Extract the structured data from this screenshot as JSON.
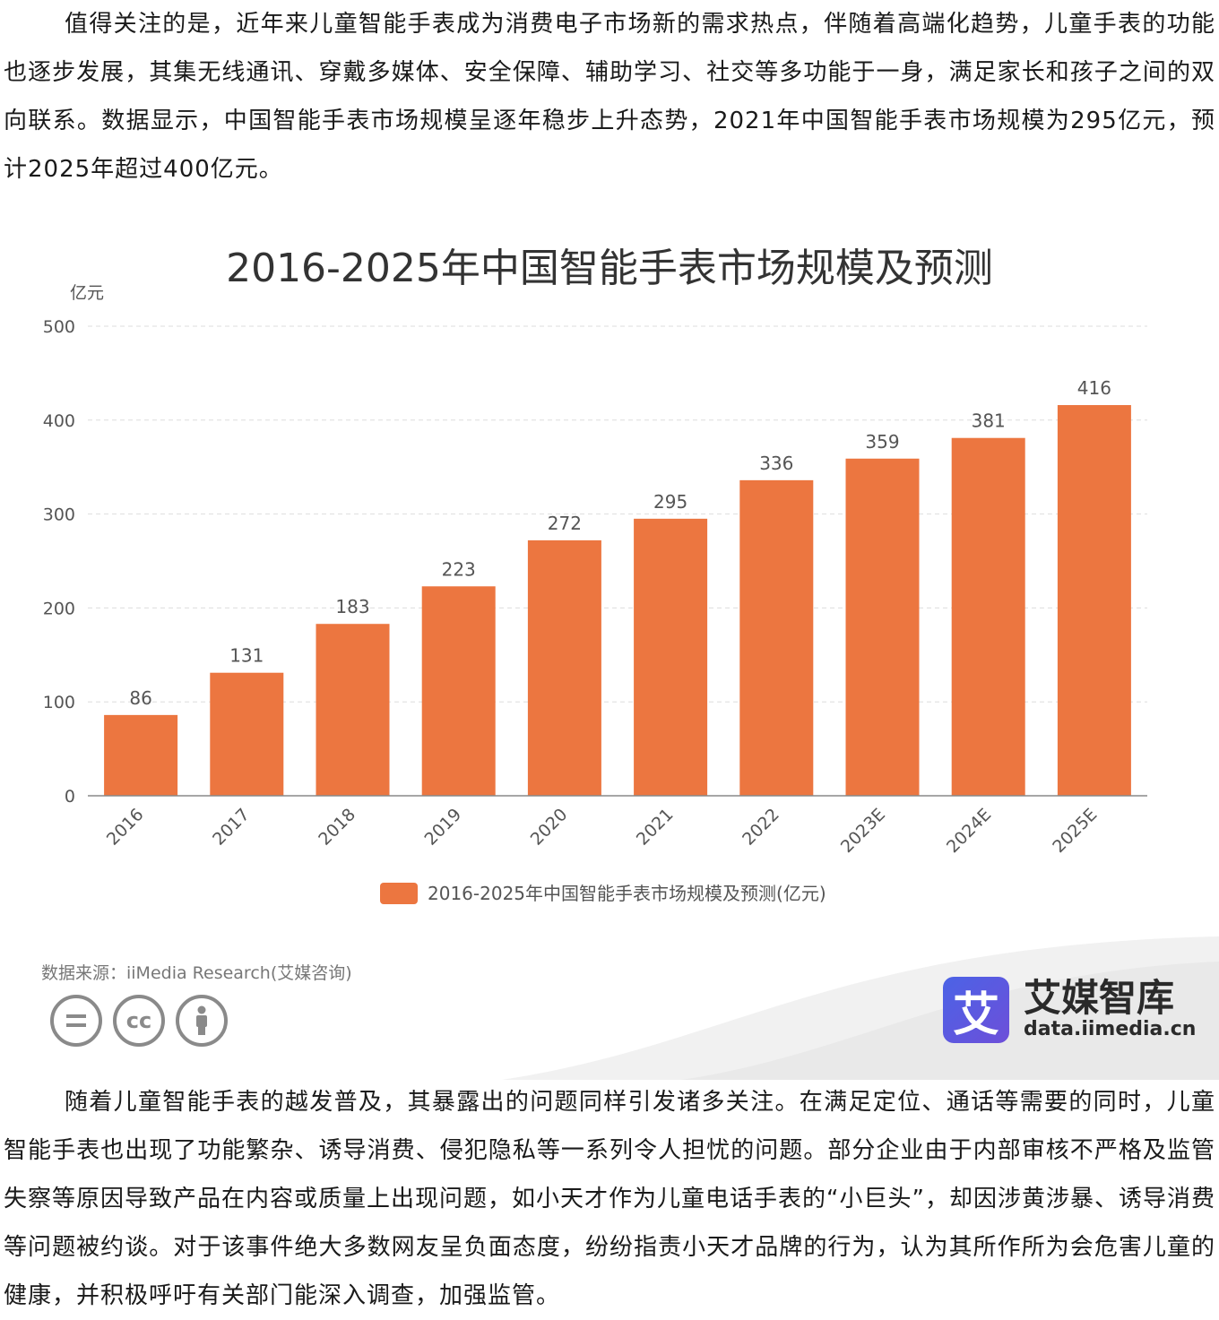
{
  "article": {
    "para1": "值得关注的是，近年来儿童智能手表成为消费电子市场新的需求热点，伴随着高端化趋势，儿童手表的功能也逐步发展，其集无线通讯、穿戴多媒体、安全保障、辅助学习、社交等多功能于一身，满足家长和孩子之间的双向联系。数据显示，中国智能手表市场规模呈逐年稳步上升态势，2021年中国智能手表市场规模为295亿元，预计2025年超过400亿元。",
    "para2": "随着儿童智能手表的越发普及，其暴露出的问题同样引发诸多关注。在满足定位、通话等需要的同时，儿童智能手表也出现了功能繁杂、诱导消费、侵犯隐私等一系列令人担忧的问题。部分企业由于内部审核不严格及监管失察等原因导致产品在内容或质量上出现问题，如小天才作为儿童电话手表的“小巨头”，却因涉黄涉暴、诱导消费等问题被约谈。对于该事件绝大多数网友呈负面态度，纷纷指责小天才品牌的行为，认为其所作所为会危害儿童的健康，并积极呼吁有关部门能深入调查，加强监管。"
  },
  "chart_data": {
    "type": "bar",
    "title": "2016-2025年中国智能手表市场规模及预测",
    "ylabel": "亿元",
    "xlabel": "",
    "categories": [
      "2016",
      "2017",
      "2018",
      "2019",
      "2020",
      "2021",
      "2022",
      "2023E",
      "2024E",
      "2025E"
    ],
    "series": [
      {
        "name": "2016-2025年中国智能手表市场规模及预测(亿元)",
        "values": [
          86,
          131,
          183,
          223,
          272,
          295,
          336,
          359,
          381,
          416
        ],
        "color": "#ec7640"
      }
    ],
    "ylim": [
      0,
      500
    ],
    "yticks": [
      0,
      100,
      200,
      300,
      400,
      500
    ],
    "grid": true,
    "legend_position": "bottom"
  },
  "footer": {
    "source": "数据来源：iiMedia Research(艾媒咨询)",
    "cc_icons": [
      "=",
      "cc",
      "person"
    ],
    "brand_logo_char": "艾",
    "brand_name": "艾媒智库",
    "brand_url": "data.iimedia.cn"
  },
  "colors": {
    "bar": "#ec7640",
    "grid": "#dddddd",
    "axis_text": "#555555",
    "title": "#333333",
    "brand_accent": "#4b63e6"
  }
}
